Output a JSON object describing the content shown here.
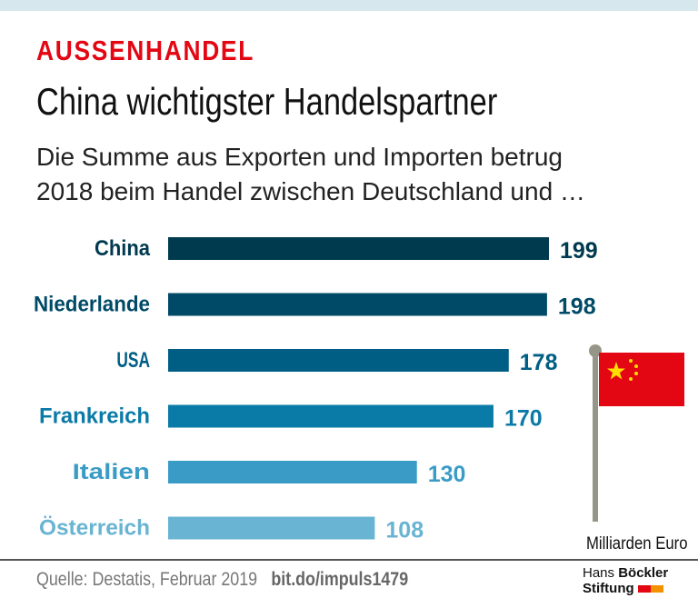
{
  "kicker": "AUSSENHANDEL",
  "title": "China wichtigster Handelspartner",
  "subtitle_line1": "Die Summe aus Exporten und Importen betrug",
  "subtitle_line2": "2018 beim Handel zwischen Deutschland und …",
  "unit": "Milliarden Euro",
  "source": "Quelle: Destatis, Februar 2019",
  "link": "bit.do/impuls1479",
  "logo": {
    "line1a": "Hans",
    "line1b": "Böckler",
    "line2": "Stiftung"
  },
  "colors": {
    "accent": "#e30613",
    "flag": "#e30613",
    "star": "#ffde00"
  },
  "icons": [
    "china-flag-icon"
  ],
  "chart_data": {
    "type": "bar",
    "orientation": "horizontal",
    "categories": [
      "China",
      "Niederlande",
      "USA",
      "Frankreich",
      "Italien",
      "Österreich"
    ],
    "values": [
      199,
      198,
      178,
      170,
      130,
      108
    ],
    "colors": [
      "#003a4f",
      "#004a67",
      "#005e84",
      "#0a7aa6",
      "#3a9cc6",
      "#68b4d2"
    ],
    "xlim": [
      0,
      199
    ],
    "grid": false
  }
}
